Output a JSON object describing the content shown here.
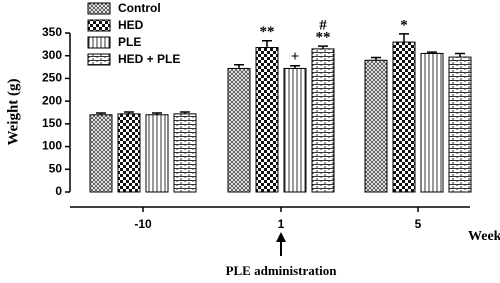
{
  "chart_data": {
    "type": "bar",
    "ylabel": "Weight (g)",
    "xlabel": "Weeks",
    "x_annotation": "PLE administration",
    "x_annotation_category": 1,
    "categories": [
      "-10",
      "1",
      "5"
    ],
    "series": [
      {
        "name": "Control",
        "pattern": "crosshatch",
        "values": [
          170,
          272,
          290
        ],
        "errors": [
          4,
          8,
          6
        ]
      },
      {
        "name": "HED",
        "pattern": "checker",
        "values": [
          172,
          318,
          330
        ],
        "errors": [
          4,
          15,
          18
        ]
      },
      {
        "name": "PLE",
        "pattern": "vertical",
        "values": [
          170,
          272,
          305
        ],
        "errors": [
          4,
          6,
          3
        ]
      },
      {
        "name": "HED + PLE",
        "pattern": "brick",
        "values": [
          172,
          315,
          297
        ],
        "errors": [
          4,
          6,
          8
        ]
      }
    ],
    "annotations": [
      {
        "text": "**",
        "series": 1,
        "category": 1
      },
      {
        "text": "+",
        "series": 2,
        "category": 1
      },
      {
        "text": "**",
        "series": 3,
        "category": 1
      },
      {
        "text": "#",
        "series": 3,
        "category": 1
      },
      {
        "text": "*",
        "series": 1,
        "category": 2
      }
    ],
    "ylim": [
      0,
      350
    ],
    "yticks": [
      0,
      50,
      100,
      150,
      200,
      250,
      300,
      350
    ],
    "legend": "upper left"
  }
}
